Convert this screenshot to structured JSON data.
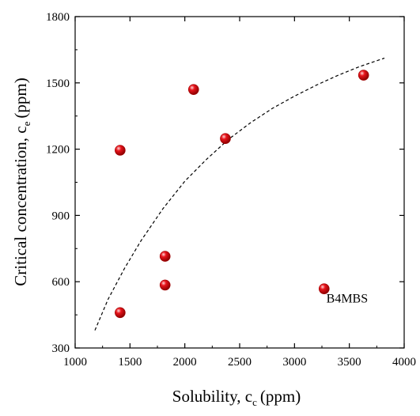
{
  "chart_data": {
    "type": "scatter",
    "title": "",
    "xlabel": {
      "main": "Solubility, c",
      "sub": "c",
      "unit": "(ppm)"
    },
    "ylabel": {
      "main": "Critical concentration, c",
      "sub": "e",
      "unit": "(ppm)"
    },
    "xlim": [
      1000,
      4000
    ],
    "ylim": [
      300,
      1800
    ],
    "xticks": [
      1000,
      1500,
      2000,
      2500,
      3000,
      3500,
      4000
    ],
    "yticks": [
      300,
      600,
      900,
      1200,
      1500,
      1800
    ],
    "grid": false,
    "series": [
      {
        "marker_color": "#e8141b",
        "x": [
          1410,
          1410,
          1820,
          1820,
          2080,
          2370,
          3270,
          3630
        ],
        "y": [
          460,
          1195,
          585,
          715,
          1470,
          1248,
          568,
          1535
        ]
      }
    ],
    "trend_line": {
      "style": "dashed",
      "x": [
        1180,
        1300,
        1450,
        1600,
        1800,
        2000,
        2200,
        2400,
        2600,
        2800,
        3000,
        3200,
        3400,
        3600,
        3820
      ],
      "y": [
        380,
        520,
        660,
        785,
        930,
        1055,
        1155,
        1245,
        1320,
        1385,
        1440,
        1490,
        1535,
        1575,
        1612
      ]
    },
    "annotations": [
      {
        "text": "B4MBS",
        "x": 3480,
        "y": 505
      }
    ]
  }
}
